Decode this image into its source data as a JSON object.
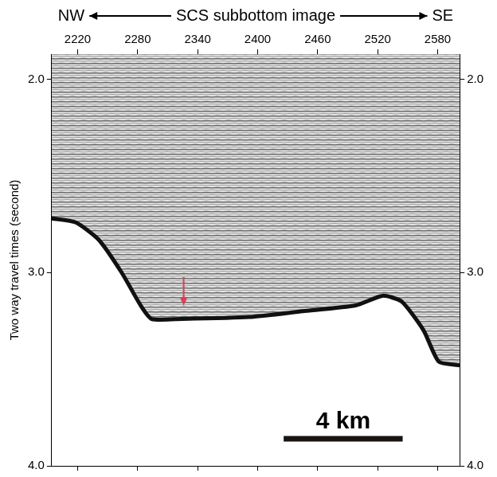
{
  "chart_data": {
    "type": "line",
    "title": "SCS subbottom image",
    "direction_labels": [
      "NW",
      "SE"
    ],
    "y_label": "Two way travel times (second)",
    "x": [
      2194,
      2218,
      2241,
      2264,
      2283,
      2294,
      2324,
      2392,
      2445,
      2498,
      2525,
      2544,
      2566,
      2581,
      2602
    ],
    "values": [
      2.72,
      2.74,
      2.83,
      3.0,
      3.17,
      3.24,
      3.24,
      3.23,
      3.2,
      3.17,
      3.12,
      3.15,
      3.3,
      3.46,
      3.48
    ],
    "color": "#111111",
    "xlim": [
      2194,
      2602
    ],
    "xticks": [
      2220,
      2280,
      2340,
      2400,
      2460,
      2520,
      2580
    ],
    "ylim": [
      1.87,
      4.0
    ],
    "yticks": [
      {
        "value": 2,
        "label": "2.0"
      },
      {
        "value": 3,
        "label": "3.0"
      },
      {
        "value": 4,
        "label": "4.0"
      }
    ],
    "grid": false,
    "annotations": [
      {
        "text": "4 km",
        "x1": 2426,
        "x2": 2545,
        "y": 3.86
      },
      {
        "arrow": true,
        "x": 2326,
        "y": 3.18,
        "color": "#d6425a"
      }
    ]
  }
}
